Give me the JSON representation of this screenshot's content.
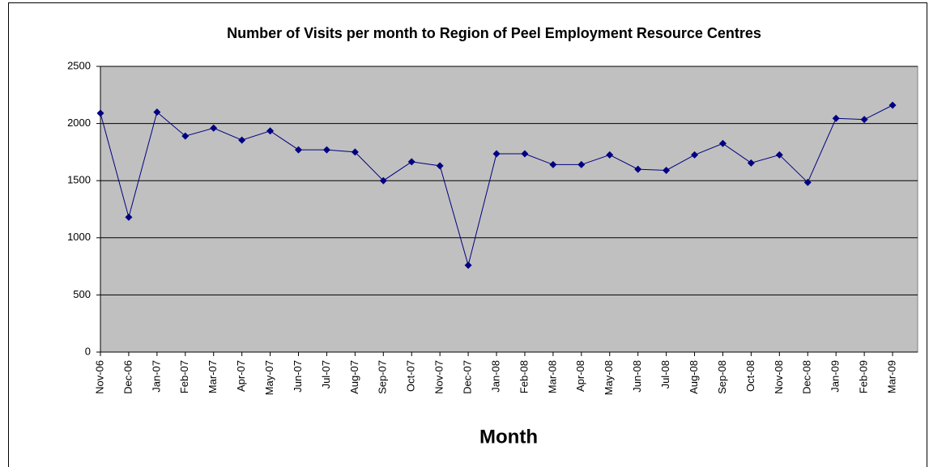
{
  "chart_data": {
    "type": "line",
    "title": "Number of Visits  per month to Region of Peel Employment Resource Centres",
    "x_label": "Month",
    "categories": [
      "Nov-06",
      "Dec-06",
      "Jan-07",
      "Feb-07",
      "Mar-07",
      "Apr-07",
      "May-07",
      "Jun-07",
      "Jul-07",
      "Aug-07",
      "Sep-07",
      "Oct-07",
      "Nov-07",
      "Dec-07",
      "Jan-08",
      "Feb-08",
      "Mar-08",
      "Apr-08",
      "May-08",
      "Jun-08",
      "Jul-08",
      "Aug-08",
      "Sep-08",
      "Oct-08",
      "Nov-08",
      "Dec-08",
      "Jan-09",
      "Feb-09",
      "Mar-09"
    ],
    "series": [
      {
        "color": "#000080",
        "values": [
          2090,
          1180,
          2100,
          1890,
          1960,
          1855,
          1935,
          1770,
          1770,
          1750,
          1500,
          1665,
          1630,
          760,
          1735,
          1735,
          1640,
          1640,
          1725,
          1600,
          1590,
          1725,
          1825,
          1655,
          1725,
          1485,
          2045,
          2035,
          2160
        ]
      }
    ],
    "ylim": [
      0,
      2500
    ],
    "yticks": [
      0,
      500,
      1000,
      1500,
      2000,
      2500
    ],
    "grid": true,
    "plot_background": "#c0c0c0"
  }
}
